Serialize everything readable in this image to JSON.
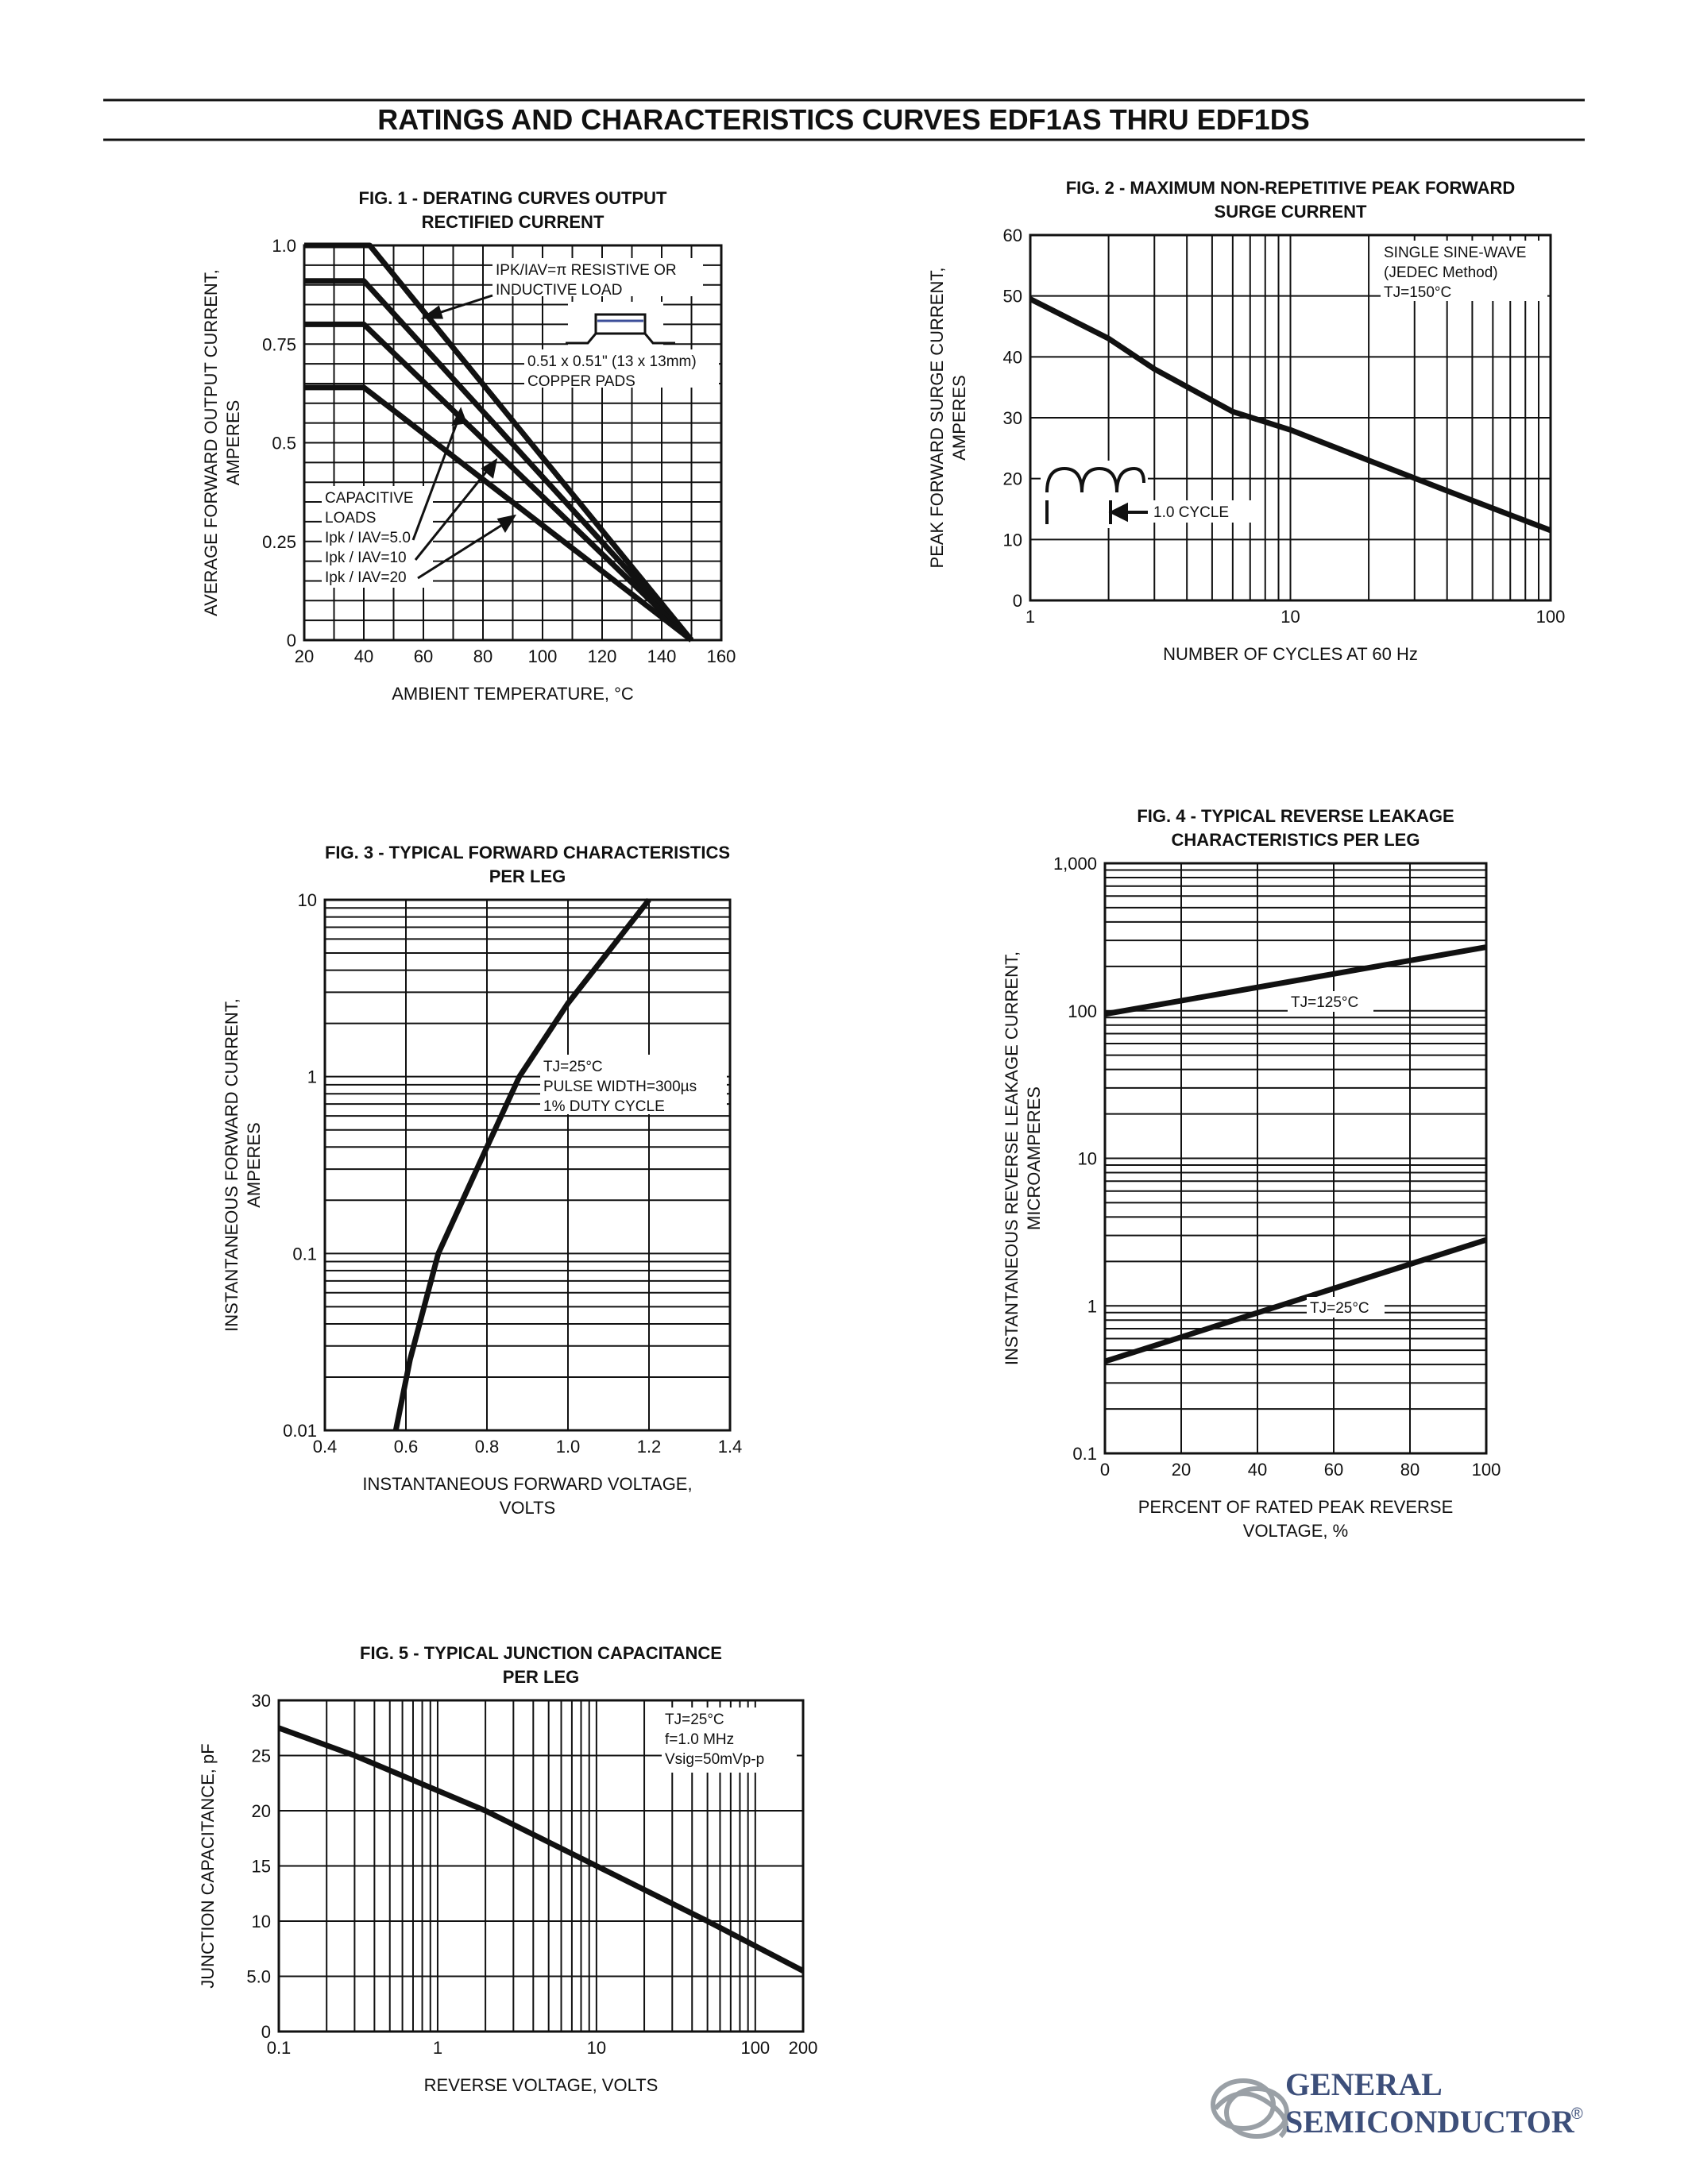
{
  "page": {
    "header_title": "RATINGS AND CHARACTERISTICS CURVES EDF1AS THRU EDF1DS"
  },
  "logo": {
    "line1": "GENERAL",
    "line2": "SEMICONDUCTOR",
    "registered": "®"
  },
  "chart_data": [
    {
      "id": "fig1",
      "type": "line",
      "title": [
        "FIG. 1 - DERATING CURVES OUTPUT",
        "RECTIFIED CURRENT"
      ],
      "xlabel": [
        "AMBIENT TEMPERATURE, °C"
      ],
      "ylabel": [
        "AVERAGE FORWARD OUTPUT  CURRENT,",
        "AMPERES"
      ],
      "xscale": "linear",
      "yscale": "linear",
      "xlim": [
        20,
        160
      ],
      "ylim": [
        0,
        1.0
      ],
      "xticks": [
        20,
        40,
        60,
        80,
        100,
        120,
        140,
        160
      ],
      "xtick_labels": [
        "20",
        "40",
        "60",
        "80",
        "100",
        "120",
        "140",
        "160"
      ],
      "yticks": [
        0,
        0.25,
        0.5,
        0.75,
        1.0
      ],
      "ytick_labels": [
        "0",
        "0.25",
        "0.5",
        "0.75",
        "1.0"
      ],
      "grid_x": [
        20,
        30,
        40,
        50,
        60,
        70,
        80,
        90,
        100,
        110,
        120,
        130,
        140,
        150,
        160
      ],
      "grid_y": [
        0,
        0.05,
        0.1,
        0.15,
        0.2,
        0.25,
        0.3,
        0.35,
        0.4,
        0.45,
        0.5,
        0.55,
        0.6,
        0.65,
        0.7,
        0.75,
        0.8,
        0.85,
        0.9,
        0.95,
        1.0
      ],
      "series": [
        {
          "points": [
            [
              20,
              1.0
            ],
            [
              42,
              1.0
            ],
            [
              150,
              0
            ]
          ]
        },
        {
          "points": [
            [
              20,
              0.91
            ],
            [
              40,
              0.91
            ],
            [
              150,
              0
            ]
          ]
        },
        {
          "points": [
            [
              20,
              0.8
            ],
            [
              40,
              0.8
            ],
            [
              150,
              0
            ]
          ]
        },
        {
          "points": [
            [
              20,
              0.64
            ],
            [
              40,
              0.64
            ],
            [
              150,
              0
            ]
          ]
        }
      ],
      "annotations": [
        {
          "lines": [
            "IPK/IAV=π RESISTIVE OR",
            "INDUCTIVE LOAD"
          ]
        },
        {
          "lines": [
            "0.51 x 0.51\" (13 x 13mm)",
            "COPPER PADS"
          ]
        },
        {
          "lines": [
            "CAPACITIVE",
            "LOADS",
            "Ipk / IAV=5.0",
            "Ipk / IAV=10",
            "Ipk / IAV=20"
          ]
        }
      ]
    },
    {
      "id": "fig2",
      "type": "line",
      "title": [
        "FIG. 2 - MAXIMUM NON-REPETITIVE PEAK FORWARD",
        "SURGE CURRENT"
      ],
      "xlabel": [
        "NUMBER OF CYCLES AT 60 Hz"
      ],
      "ylabel": [
        "PEAK FORWARD SURGE CURRENT,",
        "AMPERES"
      ],
      "xscale": "log",
      "yscale": "linear",
      "xlim": [
        1,
        100
      ],
      "ylim": [
        0,
        60
      ],
      "xticks": [
        1,
        10,
        100
      ],
      "xtick_labels": [
        "1",
        "10",
        "100"
      ],
      "yticks": [
        0,
        10,
        20,
        30,
        40,
        50,
        60
      ],
      "ytick_labels": [
        "0",
        "10",
        "20",
        "30",
        "40",
        "50",
        "60"
      ],
      "grid_x": [
        1,
        2,
        3,
        4,
        5,
        6,
        7,
        8,
        9,
        10,
        20,
        30,
        40,
        50,
        60,
        70,
        80,
        90,
        100
      ],
      "grid_y": [
        0,
        10,
        20,
        30,
        40,
        50,
        60
      ],
      "series": [
        {
          "points": [
            [
              1,
              49.5
            ],
            [
              2,
              43
            ],
            [
              3,
              38
            ],
            [
              6,
              31
            ],
            [
              10,
              28
            ],
            [
              20,
              23
            ],
            [
              40,
              18
            ],
            [
              100,
              11.5
            ]
          ]
        }
      ],
      "annotations": [
        {
          "lines": [
            "SINGLE SINE-WAVE",
            "(JEDEC Method)",
            "TJ=150°C"
          ]
        },
        {
          "lines": [
            "1.0 CYCLE"
          ]
        }
      ]
    },
    {
      "id": "fig3",
      "type": "line",
      "title": [
        "FIG. 3 - TYPICAL FORWARD CHARACTERISTICS",
        "PER LEG"
      ],
      "xlabel": [
        "INSTANTANEOUS FORWARD VOLTAGE,",
        "VOLTS"
      ],
      "ylabel": [
        "INSTANTANEOUS FORWARD CURRENT,",
        "AMPERES"
      ],
      "xscale": "linear",
      "yscale": "log",
      "xlim": [
        0.4,
        1.4
      ],
      "ylim": [
        0.01,
        10
      ],
      "xticks": [
        0.4,
        0.6,
        0.8,
        1.0,
        1.2,
        1.4
      ],
      "xtick_labels": [
        "0.4",
        "0.6",
        "0.8",
        "1.0",
        "1.2",
        "1.4"
      ],
      "yticks": [
        0.01,
        0.1,
        1,
        10
      ],
      "ytick_labels": [
        "0.01",
        "0.1",
        "1",
        "10"
      ],
      "grid_x": [
        0.4,
        0.6,
        0.8,
        1.0,
        1.2,
        1.4
      ],
      "grid_y": [
        0.01,
        0.02,
        0.03,
        0.04,
        0.05,
        0.06,
        0.07,
        0.08,
        0.09,
        0.1,
        0.2,
        0.3,
        0.4,
        0.5,
        0.6,
        0.7,
        0.8,
        0.9,
        1,
        2,
        3,
        4,
        5,
        6,
        7,
        8,
        9,
        10
      ],
      "series": [
        {
          "points": [
            [
              0.575,
              0.01
            ],
            [
              0.61,
              0.025
            ],
            [
              0.68,
              0.1
            ],
            [
              0.8,
              0.4
            ],
            [
              0.88,
              1
            ],
            [
              1.0,
              2.6
            ],
            [
              1.2,
              10
            ]
          ]
        }
      ],
      "annotations": [
        {
          "lines": [
            "TJ=25°C",
            "PULSE WIDTH=300µs",
            "1% DUTY CYCLE"
          ]
        }
      ]
    },
    {
      "id": "fig4",
      "type": "line",
      "title": [
        "FIG. 4 - TYPICAL REVERSE LEAKAGE",
        "CHARACTERISTICS PER LEG"
      ],
      "xlabel": [
        "PERCENT OF RATED PEAK REVERSE",
        "VOLTAGE, %"
      ],
      "ylabel": [
        "INSTANTANEOUS REVERSE LEAKAGE CURRENT,",
        "MICROAMPERES"
      ],
      "xscale": "linear",
      "yscale": "log",
      "xlim": [
        0,
        100
      ],
      "ylim": [
        0.1,
        1000
      ],
      "xticks": [
        0,
        20,
        40,
        60,
        80,
        100
      ],
      "xtick_labels": [
        "0",
        "20",
        "40",
        "60",
        "80",
        "100"
      ],
      "yticks": [
        0.1,
        1,
        10,
        100,
        1000
      ],
      "ytick_labels": [
        "0.1",
        "1",
        "10",
        "100",
        "1,000"
      ],
      "grid_x": [
        0,
        20,
        40,
        60,
        80,
        100
      ],
      "grid_y": [
        0.1,
        0.2,
        0.3,
        0.4,
        0.5,
        0.6,
        0.7,
        0.8,
        0.9,
        1,
        2,
        3,
        4,
        5,
        6,
        7,
        8,
        9,
        10,
        20,
        30,
        40,
        50,
        60,
        70,
        80,
        90,
        100,
        200,
        300,
        400,
        500,
        600,
        700,
        800,
        900,
        1000
      ],
      "series": [
        {
          "name": "TJ=125°C",
          "points": [
            [
              0,
              95
            ],
            [
              100,
              270
            ]
          ]
        },
        {
          "name": "TJ=25°C",
          "points": [
            [
              0,
              0.42
            ],
            [
              100,
              2.8
            ]
          ]
        }
      ],
      "annotations": []
    },
    {
      "id": "fig5",
      "type": "line",
      "title": [
        "FIG. 5 - TYPICAL JUNCTION CAPACITANCE",
        "PER LEG"
      ],
      "xlabel": [
        "REVERSE VOLTAGE, VOLTS"
      ],
      "ylabel": [
        "JUNCTION CAPACITANCE, pF"
      ],
      "xscale": "log",
      "yscale": "linear",
      "xlim": [
        0.1,
        200
      ],
      "ylim": [
        0,
        30
      ],
      "xticks": [
        0.1,
        1,
        10,
        100,
        200
      ],
      "xtick_labels": [
        "0.1",
        "1",
        "10",
        "100",
        "200"
      ],
      "yticks": [
        0,
        5,
        10,
        15,
        20,
        25,
        30
      ],
      "ytick_labels": [
        "0",
        "5.0",
        "10",
        "15",
        "20",
        "25",
        "30"
      ],
      "grid_x": [
        0.1,
        0.2,
        0.3,
        0.4,
        0.5,
        0.6,
        0.7,
        0.8,
        0.9,
        1,
        2,
        3,
        4,
        5,
        6,
        7,
        8,
        9,
        10,
        20,
        30,
        40,
        50,
        60,
        70,
        80,
        90,
        100,
        200
      ],
      "grid_y": [
        0,
        5,
        10,
        15,
        20,
        25,
        30
      ],
      "series": [
        {
          "points": [
            [
              0.1,
              27.5
            ],
            [
              0.3,
              25
            ],
            [
              2,
              20
            ],
            [
              10,
              15
            ],
            [
              50,
              10
            ],
            [
              200,
              5.5
            ]
          ]
        }
      ],
      "annotations": [
        {
          "lines": [
            "TJ=25°C",
            "f=1.0 MHz",
            "Vsig=50mVp-p"
          ]
        }
      ]
    }
  ]
}
